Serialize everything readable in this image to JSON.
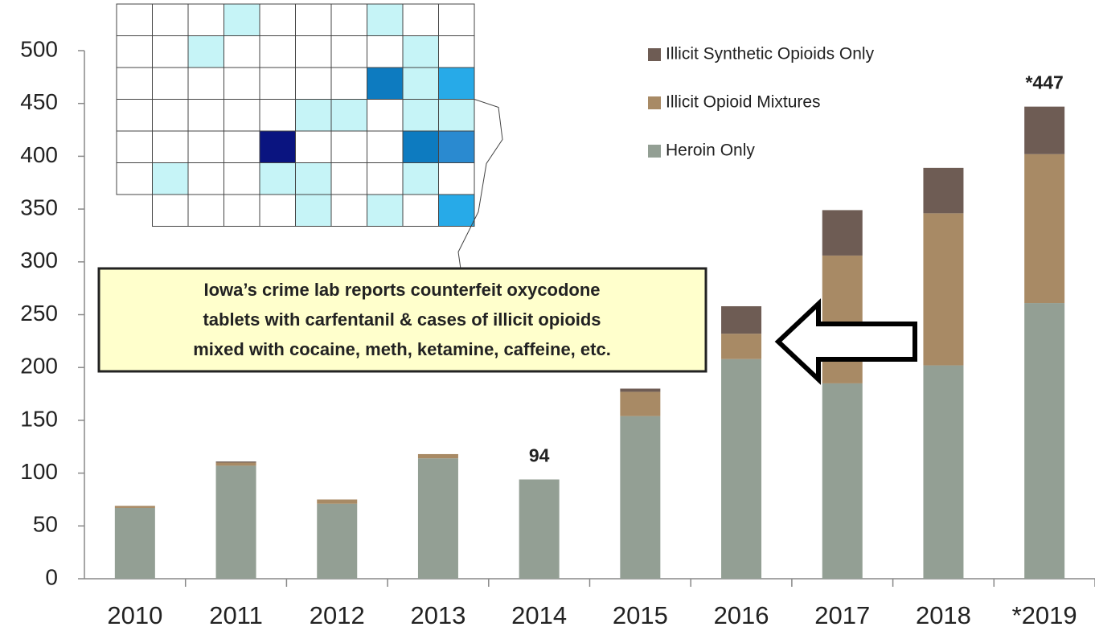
{
  "chart_data": {
    "type": "stacked_bar",
    "categories": [
      "2010",
      "2011",
      "2012",
      "2013",
      "2014",
      "2015",
      "2016",
      "2017",
      "2018",
      "*2019"
    ],
    "series": [
      {
        "name": "Heroin Only",
        "color": "#939f94",
        "values": [
          67,
          107,
          71,
          114,
          94,
          154,
          208,
          185,
          202,
          261
        ]
      },
      {
        "name": "Illicit Opioid Mixtures",
        "color": "#a88a65",
        "values": [
          2,
          3,
          4,
          4,
          0,
          23,
          24,
          121,
          144,
          141
        ]
      },
      {
        "name": "Illicit Synthetic Opioids Only",
        "color": "#6e5c54",
        "values": [
          0,
          1,
          0,
          0,
          0,
          3,
          26,
          43,
          43,
          45
        ]
      }
    ],
    "ylim": [
      0,
      500
    ],
    "yticks": [
      0,
      50,
      100,
      150,
      200,
      250,
      300,
      350,
      400,
      450,
      500
    ],
    "annotations": [
      {
        "x": "2014",
        "value": 94,
        "label": "94"
      },
      {
        "x": "*2019",
        "value": 447,
        "label": "*447"
      }
    ],
    "callout": {
      "lines": [
        "Iowa’s crime lab reports counterfeit oxycodone",
        "tablets with carfentanil & cases of illicit opioids",
        "mixed with cocaine, meth, ketamine, caffeine, etc."
      ]
    }
  }
}
